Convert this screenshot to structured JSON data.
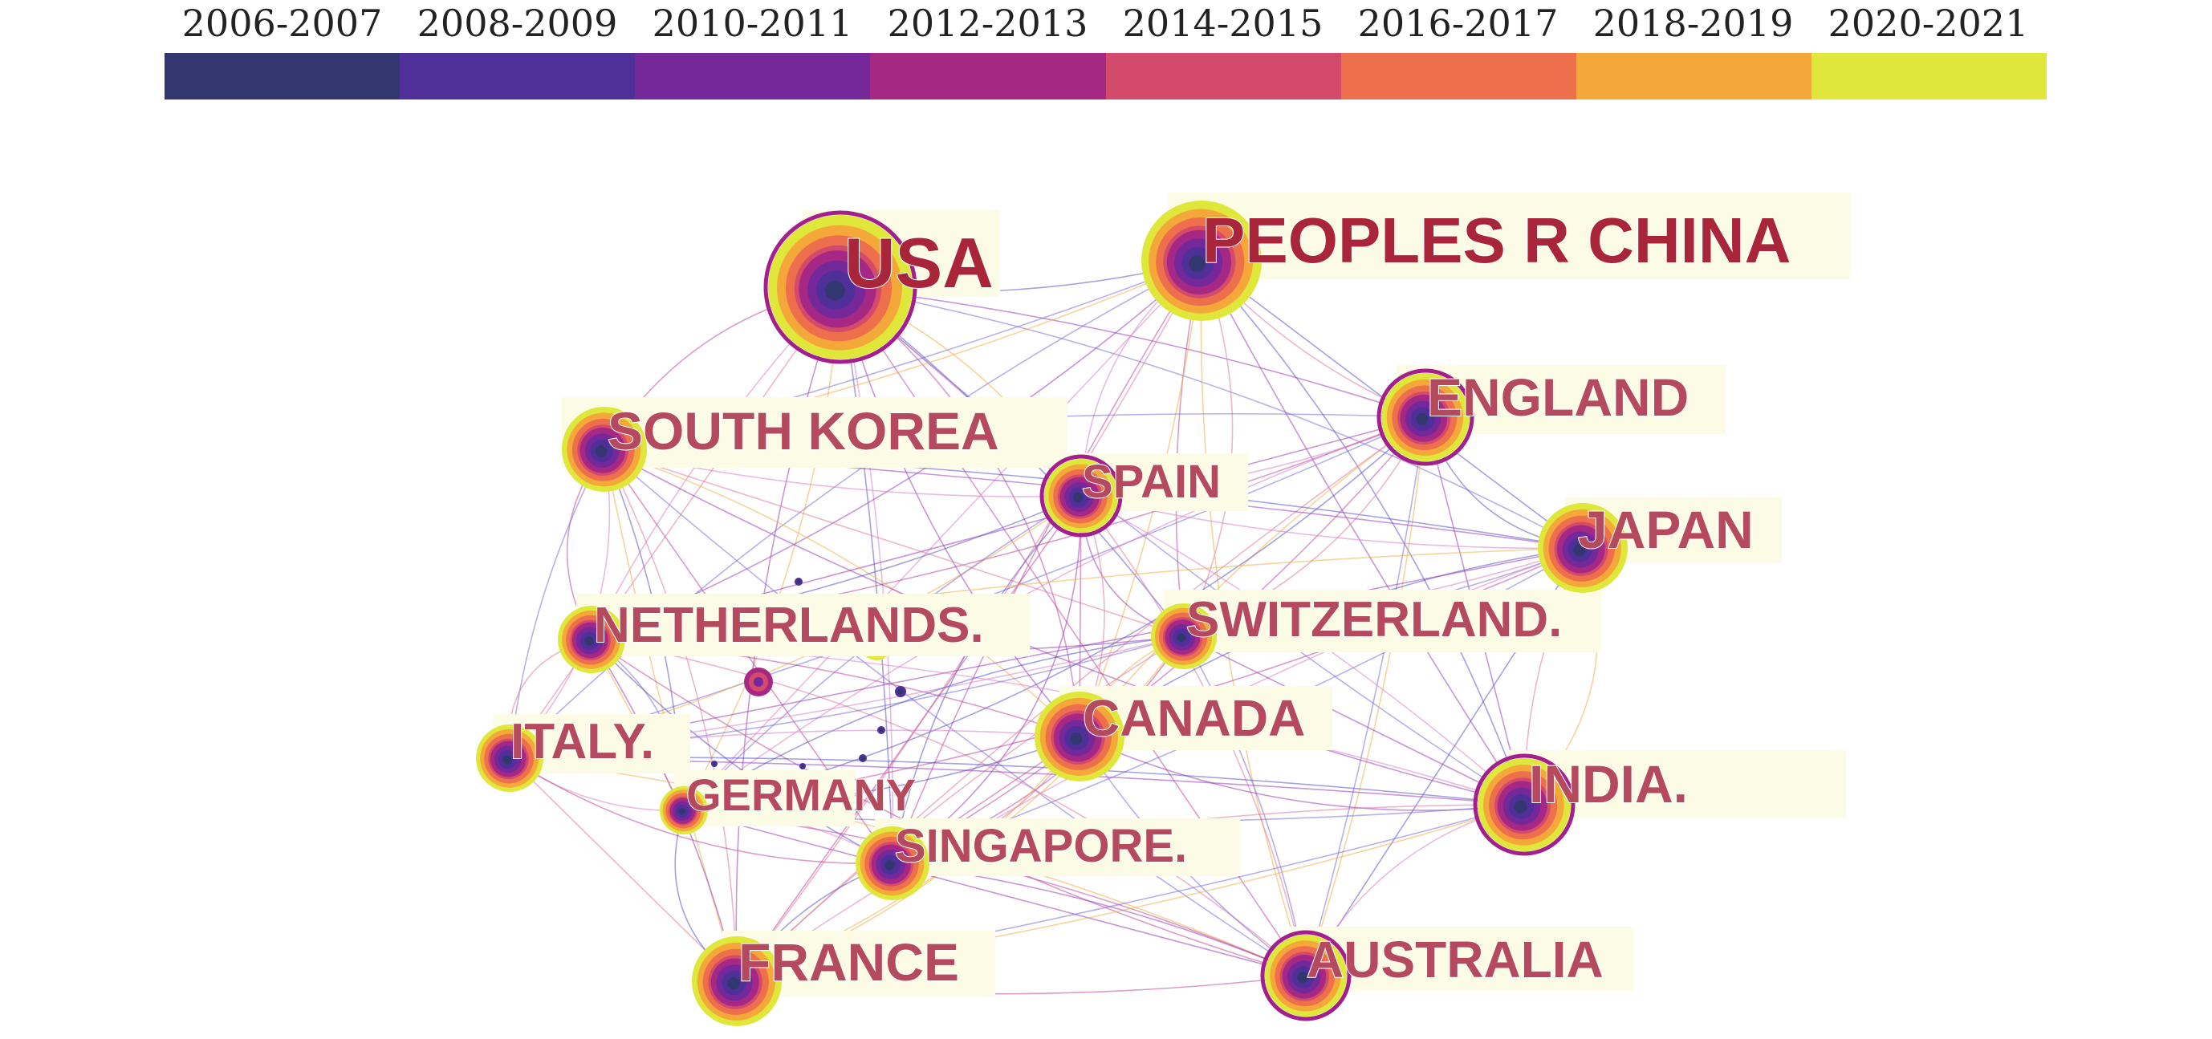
{
  "legend": {
    "periods": [
      {
        "label": "2006-2007",
        "color": "#333770"
      },
      {
        "label": "2008-2009",
        "color": "#4f2f98"
      },
      {
        "label": "2010-2011",
        "color": "#74289a"
      },
      {
        "label": "2012-2013",
        "color": "#a42884"
      },
      {
        "label": "2014-2015",
        "color": "#d44a6a"
      },
      {
        "label": "2016-2017",
        "color": "#ee6f4c"
      },
      {
        "label": "2018-2019",
        "color": "#f4a83a"
      },
      {
        "label": "2020-2021",
        "color": "#dfe83a"
      }
    ]
  },
  "countries": [
    {
      "id": "usa",
      "label": "USA"
    },
    {
      "id": "china",
      "label": "PEOPLES R CHINA"
    },
    {
      "id": "england",
      "label": "ENGLAND"
    },
    {
      "id": "southkorea",
      "label": "SOUTH KOREA"
    },
    {
      "id": "spain",
      "label": "SPAIN"
    },
    {
      "id": "japan",
      "label": "JAPAN"
    },
    {
      "id": "netherlands",
      "label": "NETHERLANDS."
    },
    {
      "id": "switzerland",
      "label": "SWITZERLAND."
    },
    {
      "id": "canada",
      "label": "CANADA"
    },
    {
      "id": "italy",
      "label": "ITALY."
    },
    {
      "id": "germany",
      "label": "GERMANY"
    },
    {
      "id": "india",
      "label": "INDIA."
    },
    {
      "id": "singapore",
      "label": "SINGAPORE."
    },
    {
      "id": "france",
      "label": "FRANCE"
    },
    {
      "id": "australia",
      "label": "AUSTRALIA"
    }
  ]
}
